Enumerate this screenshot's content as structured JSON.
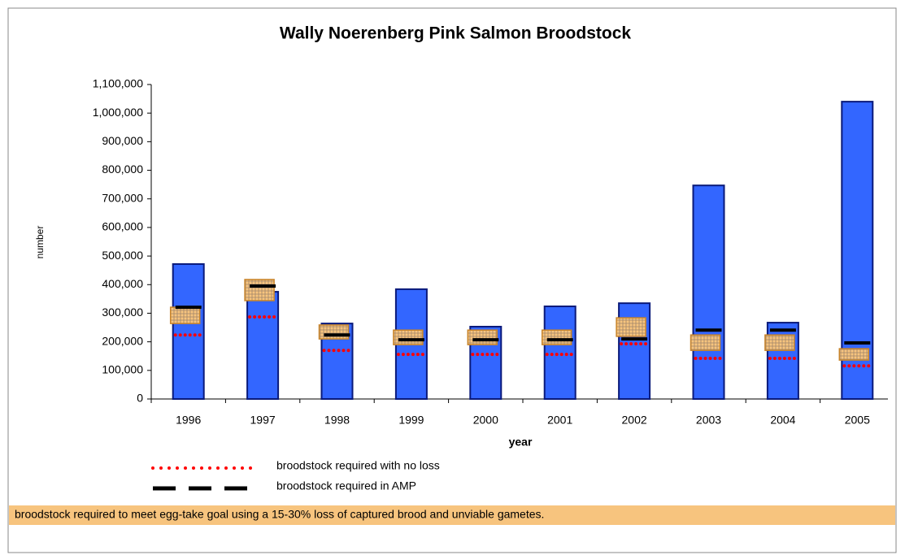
{
  "chart_data": {
    "type": "bar",
    "title": "Wally Noerenberg Pink Salmon Broodstock",
    "x_label": "year",
    "y_label": "number",
    "categories": [
      "1996",
      "1997",
      "1998",
      "1999",
      "2000",
      "2001",
      "2002",
      "2003",
      "2004",
      "2005"
    ],
    "series": [
      {
        "color": "#3366ff",
        "values": [
          472000,
          375000,
          264000,
          384000,
          253000,
          324000,
          335000,
          747000,
          267000,
          1040000
        ]
      },
      {
        "name": "broodstock required with no loss",
        "color": "#ff0000",
        "style": "dotted",
        "values": [
          224000,
          287000,
          170000,
          156000,
          156000,
          156000,
          193000,
          142000,
          142000,
          116000
        ]
      },
      {
        "name": "broodstock required in AMP",
        "color": "#000000",
        "style": "dashed",
        "values": [
          321000,
          395000,
          224000,
          207000,
          207000,
          207000,
          210000,
          241000,
          241000,
          196000
        ]
      }
    ],
    "range": {
      "name": "broodstock required to meet egg-take goal using a 15-30% loss of captured brood and unviable gametes.",
      "color": "#f7c47e",
      "low": [
        264000,
        344000,
        210000,
        190000,
        190000,
        190000,
        219000,
        170000,
        170000,
        136000
      ],
      "high": [
        321000,
        418000,
        259000,
        241000,
        241000,
        241000,
        284000,
        224000,
        224000,
        176000
      ]
    },
    "ylim": [
      0,
      1100000
    ],
    "yticks": [
      0,
      {
        "value": 100000,
        "label": "100,000"
      },
      {
        "value": 200000,
        "label": "200,000"
      },
      {
        "value": 300000,
        "label": "300,000"
      },
      {
        "value": 400000,
        "label": "400,000"
      },
      {
        "value": 500000,
        "label": "500,000"
      },
      {
        "value": 600000,
        "label": "600,000"
      },
      {
        "value": 700000,
        "label": "700,000"
      },
      {
        "value": 800000,
        "label": "800,000"
      },
      {
        "value": 900000,
        "label": "900,000"
      },
      {
        "value": 1000000,
        "label": "1,000,000"
      },
      {
        "value": 1100000,
        "label": "1,100,000"
      }
    ]
  }
}
